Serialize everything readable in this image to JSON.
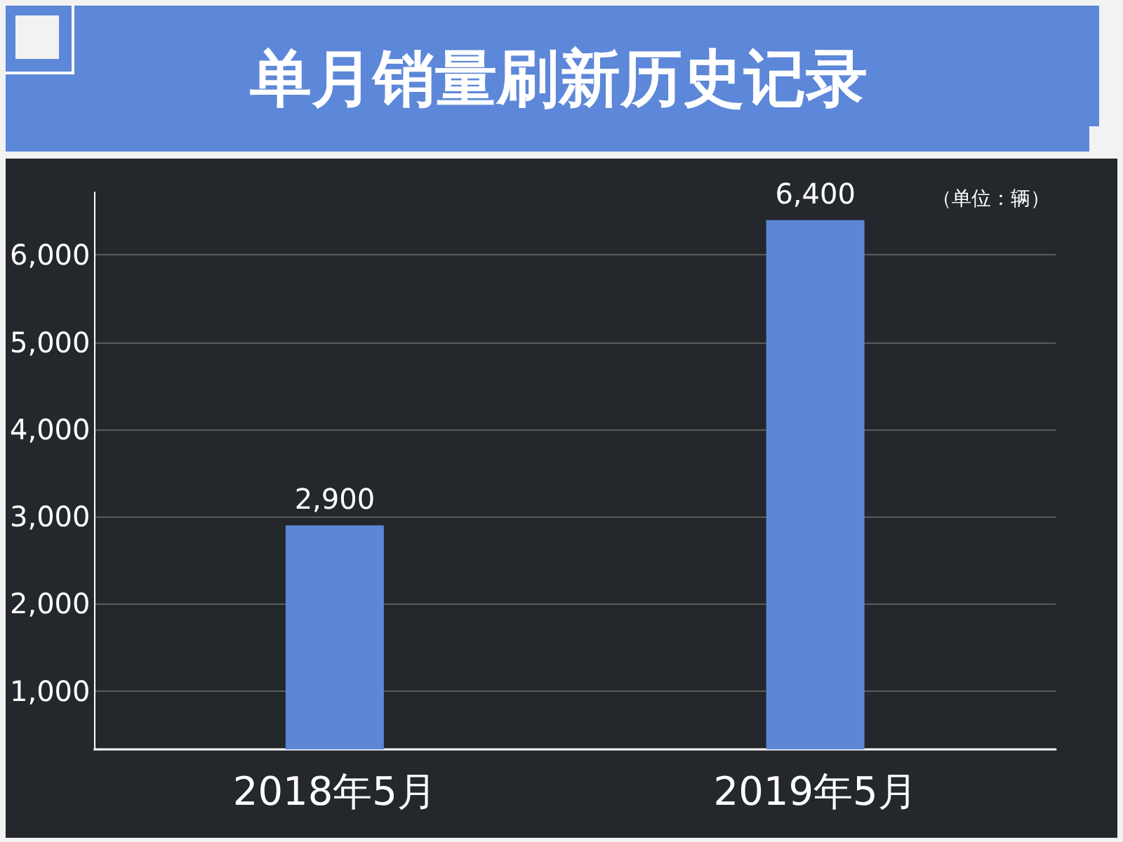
{
  "chart_data": {
    "type": "bar",
    "title": "单月销量刷新历史记录",
    "categories": [
      "2018年5月",
      "2019年5月"
    ],
    "values": [
      2900,
      6400
    ],
    "value_labels": [
      "2,900",
      "6,400"
    ],
    "color": "#5d87d6",
    "ylim": [
      330,
      6720
    ],
    "yticks": [
      {
        "value": 1000,
        "label": "1,000"
      },
      {
        "value": 2000,
        "label": "2,000"
      },
      {
        "value": 3000,
        "label": "3,000"
      },
      {
        "value": 4000,
        "label": "4,000"
      },
      {
        "value": 5000,
        "label": "5,000"
      },
      {
        "value": 6000,
        "label": "6,000"
      }
    ],
    "grid": "y",
    "annotations": [
      "（单位：辆）"
    ]
  }
}
